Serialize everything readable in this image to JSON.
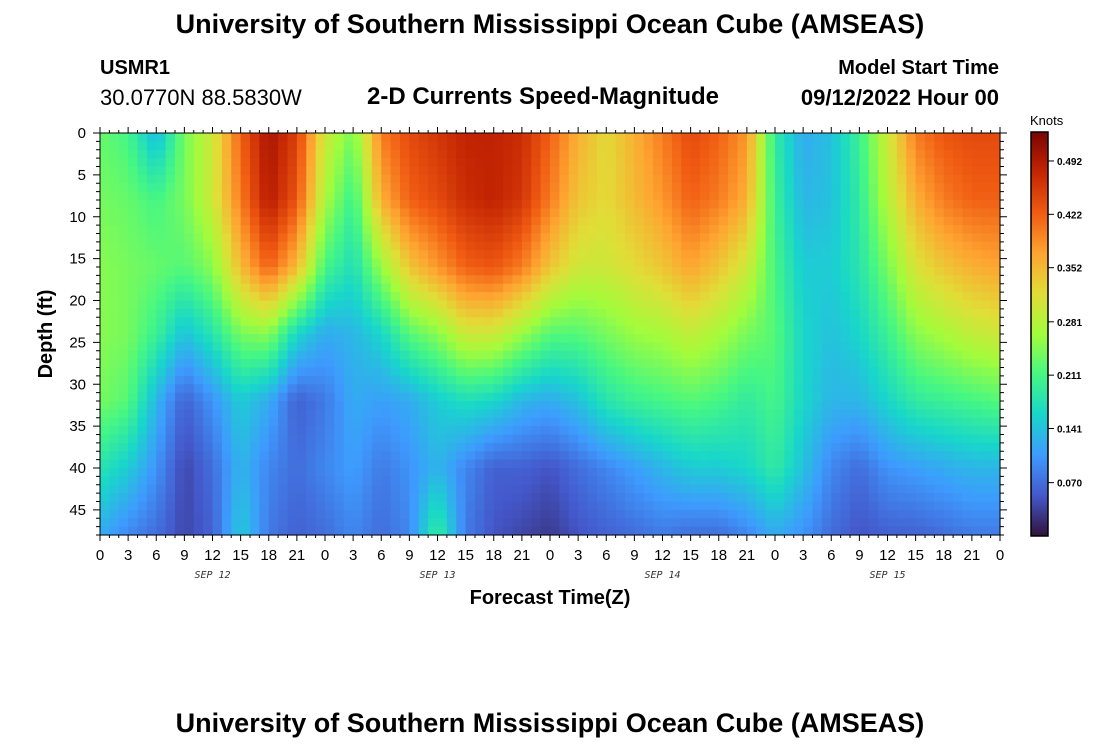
{
  "header": {
    "title": "University of Southern Mississippi Ocean Cube (AMSEAS)",
    "station": "USMR1",
    "coords": "30.0770N  88.5830W",
    "subtitle": "2-D Currents Speed-Magnitude",
    "model_start_label": "Model Start Time",
    "model_start_value": "09/12/2022 Hour 00"
  },
  "footer": {
    "title": "University of Southern Mississippi Ocean Cube (AMSEAS)"
  },
  "chart_data": {
    "type": "heatmap",
    "title": "2-D Currents Speed-Magnitude",
    "xlabel": "Forecast Time(Z)",
    "ylabel": "Depth (ft)",
    "x_hours": [
      0,
      3,
      6,
      9,
      12,
      15,
      18,
      21,
      24,
      27,
      30,
      33,
      36,
      39,
      42,
      45,
      48,
      51,
      54,
      57,
      60,
      63,
      66,
      69,
      72,
      75,
      78,
      81,
      84,
      87,
      90,
      93,
      96
    ],
    "x_tick_labels": [
      "0",
      "3",
      "6",
      "9",
      "12",
      "15",
      "18",
      "21",
      "0",
      "3",
      "6",
      "9",
      "12",
      "15",
      "18",
      "21",
      "0",
      "3",
      "6",
      "9",
      "12",
      "15",
      "18",
      "21",
      "0",
      "3",
      "6",
      "9",
      "12",
      "15",
      "18",
      "21",
      "0"
    ],
    "date_labels": [
      {
        "label": "SEP 12",
        "hour": 12
      },
      {
        "label": "SEP 13",
        "hour": 36
      },
      {
        "label": "SEP 14",
        "hour": 60
      },
      {
        "label": "SEP 15",
        "hour": 84
      }
    ],
    "y_ticks": [
      0,
      5,
      10,
      15,
      20,
      25,
      30,
      35,
      40,
      45
    ],
    "ylim": [
      0,
      48
    ],
    "xlim": [
      0,
      96
    ],
    "colorbar": {
      "unit": "Knots",
      "ticks": [
        "0.492",
        "0.422",
        "0.352",
        "0.281",
        "0.211",
        "0.141",
        "0.070"
      ],
      "tick_values": [
        0.492,
        0.422,
        0.352,
        0.281,
        0.211,
        0.141,
        0.07
      ],
      "range": [
        0.0,
        0.53
      ]
    },
    "depth_levels": [
      0,
      8,
      16,
      24,
      32,
      40,
      48
    ],
    "speed_grid_knots": [
      [
        0.23,
        0.21,
        0.13,
        0.24,
        0.3,
        0.42,
        0.5,
        0.45,
        0.3,
        0.24,
        0.4,
        0.44,
        0.46,
        0.48,
        0.48,
        0.47,
        0.42,
        0.36,
        0.32,
        0.36,
        0.4,
        0.44,
        0.42,
        0.38,
        0.19,
        0.12,
        0.14,
        0.2,
        0.3,
        0.4,
        0.43,
        0.44,
        0.44
      ],
      [
        0.24,
        0.23,
        0.21,
        0.24,
        0.3,
        0.4,
        0.49,
        0.43,
        0.27,
        0.2,
        0.36,
        0.42,
        0.44,
        0.47,
        0.48,
        0.46,
        0.4,
        0.34,
        0.32,
        0.35,
        0.38,
        0.42,
        0.4,
        0.36,
        0.2,
        0.13,
        0.14,
        0.19,
        0.28,
        0.36,
        0.4,
        0.42,
        0.42
      ],
      [
        0.25,
        0.24,
        0.23,
        0.22,
        0.25,
        0.35,
        0.42,
        0.35,
        0.21,
        0.17,
        0.26,
        0.34,
        0.38,
        0.42,
        0.43,
        0.4,
        0.34,
        0.3,
        0.3,
        0.32,
        0.34,
        0.37,
        0.34,
        0.3,
        0.21,
        0.15,
        0.15,
        0.18,
        0.24,
        0.31,
        0.34,
        0.36,
        0.37
      ],
      [
        0.25,
        0.24,
        0.2,
        0.14,
        0.18,
        0.24,
        0.25,
        0.16,
        0.12,
        0.13,
        0.16,
        0.22,
        0.25,
        0.3,
        0.3,
        0.26,
        0.22,
        0.22,
        0.24,
        0.26,
        0.27,
        0.29,
        0.27,
        0.24,
        0.22,
        0.16,
        0.14,
        0.16,
        0.2,
        0.25,
        0.27,
        0.29,
        0.3
      ],
      [
        0.24,
        0.22,
        0.13,
        0.06,
        0.1,
        0.15,
        0.12,
        0.06,
        0.08,
        0.12,
        0.11,
        0.12,
        0.15,
        0.17,
        0.16,
        0.13,
        0.12,
        0.14,
        0.18,
        0.2,
        0.21,
        0.22,
        0.21,
        0.19,
        0.21,
        0.16,
        0.13,
        0.13,
        0.16,
        0.19,
        0.2,
        0.21,
        0.22
      ],
      [
        0.18,
        0.15,
        0.1,
        0.04,
        0.07,
        0.13,
        0.09,
        0.07,
        0.09,
        0.11,
        0.08,
        0.1,
        0.13,
        0.09,
        0.06,
        0.06,
        0.05,
        0.07,
        0.09,
        0.11,
        0.13,
        0.15,
        0.15,
        0.16,
        0.19,
        0.14,
        0.09,
        0.07,
        0.1,
        0.11,
        0.12,
        0.13,
        0.13
      ],
      [
        0.12,
        0.09,
        0.07,
        0.04,
        0.06,
        0.15,
        0.08,
        0.06,
        0.07,
        0.09,
        0.07,
        0.09,
        0.2,
        0.08,
        0.05,
        0.04,
        0.03,
        0.05,
        0.06,
        0.07,
        0.08,
        0.07,
        0.07,
        0.09,
        0.12,
        0.1,
        0.07,
        0.05,
        0.06,
        0.06,
        0.07,
        0.08,
        0.08
      ]
    ]
  }
}
